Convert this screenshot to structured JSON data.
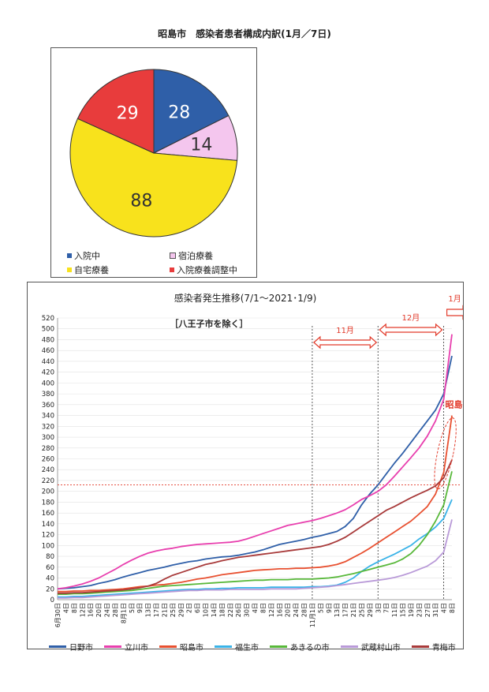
{
  "chart_data": [
    {
      "type": "pie",
      "title": "昭島市　感染者患者構成内訳(1月／7日)",
      "slices": [
        {
          "name": "入院中",
          "value": 28,
          "color": "#2f5fa8"
        },
        {
          "name": "宿泊療養",
          "value": 14,
          "color": "#f4c6ee"
        },
        {
          "name": "自宅療養",
          "value": 88,
          "color": "#f8e21c"
        },
        {
          "name": "入院療養調整中",
          "value": 29,
          "color": "#e83c3c"
        }
      ]
    },
    {
      "type": "line",
      "title": "感染者発生推移(7/1～2021･1/9)",
      "subtitle": "［八王子市を除く］",
      "ylim": [
        0,
        520
      ],
      "ystep": 20,
      "reference_line": 212,
      "month_labels": [
        "11月",
        "12月",
        "1月"
      ],
      "x_ticks": [
        "6月30日",
        "4日",
        "8日",
        "12日",
        "16日",
        "20日",
        "24日",
        "28日",
        "8月1日",
        "5日",
        "9日",
        "13日",
        "17日",
        "21日",
        "25日",
        "29日",
        "2日",
        "6日",
        "10日",
        "14日",
        "18日",
        "22日",
        "26日",
        "30日",
        "4日",
        "8日",
        "12日",
        "16日",
        "20日",
        "24日",
        "28日",
        "11月1日",
        "5日",
        "9日",
        "13日",
        "17日",
        "21日",
        "25日",
        "29日",
        "3日",
        "7日",
        "11日",
        "15日",
        "19日",
        "23日",
        "27日",
        "31日",
        "4日",
        "8日"
      ],
      "series": [
        {
          "name": "日野市",
          "color": "#2f5fa8",
          "values": [
            20,
            21,
            22,
            24,
            26,
            30,
            33,
            37,
            42,
            46,
            50,
            54,
            57,
            60,
            64,
            67,
            70,
            72,
            75,
            77,
            79,
            80,
            82,
            85,
            88,
            92,
            97,
            102,
            105,
            108,
            111,
            115,
            118,
            122,
            126,
            135,
            150,
            175,
            195,
            212,
            232,
            252,
            270,
            290,
            310,
            330,
            350,
            380,
            450
          ]
        },
        {
          "name": "立川市",
          "color": "#e83fae",
          "values": [
            20,
            22,
            25,
            29,
            34,
            40,
            48,
            56,
            65,
            73,
            80,
            86,
            90,
            93,
            95,
            98,
            100,
            102,
            103,
            104,
            105,
            106,
            108,
            112,
            117,
            122,
            127,
            132,
            137,
            140,
            143,
            146,
            150,
            155,
            160,
            166,
            175,
            185,
            192,
            200,
            212,
            228,
            245,
            262,
            280,
            302,
            330,
            370,
            490
          ]
        },
        {
          "name": "昭島市",
          "color": "#e85030",
          "values": [
            15,
            15,
            16,
            16,
            17,
            17,
            18,
            19,
            20,
            22,
            24,
            25,
            27,
            28,
            30,
            32,
            35,
            38,
            40,
            43,
            46,
            48,
            50,
            52,
            54,
            55,
            56,
            57,
            57,
            58,
            58,
            59,
            60,
            62,
            65,
            70,
            78,
            86,
            95,
            105,
            115,
            125,
            135,
            145,
            158,
            172,
            195,
            235,
            340
          ]
        },
        {
          "name": "福生市",
          "color": "#3ab3e8",
          "values": [
            5,
            5,
            6,
            6,
            7,
            8,
            9,
            10,
            11,
            12,
            13,
            14,
            15,
            16,
            17,
            18,
            19,
            19,
            20,
            20,
            21,
            21,
            22,
            22,
            22,
            22,
            23,
            23,
            23,
            23,
            23,
            24,
            24,
            25,
            27,
            32,
            40,
            52,
            62,
            70,
            77,
            84,
            92,
            100,
            112,
            122,
            134,
            150,
            185
          ]
        },
        {
          "name": "あきるの市",
          "color": "#58b83a",
          "values": [
            10,
            10,
            11,
            11,
            12,
            13,
            14,
            15,
            16,
            17,
            19,
            21,
            23,
            25,
            26,
            27,
            28,
            29,
            30,
            31,
            32,
            33,
            34,
            35,
            36,
            36,
            37,
            37,
            37,
            38,
            38,
            38,
            39,
            40,
            42,
            45,
            48,
            52,
            56,
            60,
            64,
            68,
            75,
            85,
            100,
            120,
            145,
            175,
            237
          ]
        },
        {
          "name": "武蔵村山市",
          "color": "#b99ad8",
          "values": [
            3,
            3,
            4,
            4,
            5,
            6,
            7,
            8,
            9,
            10,
            11,
            12,
            13,
            14,
            15,
            16,
            17,
            17,
            18,
            18,
            18,
            19,
            19,
            19,
            19,
            19,
            20,
            20,
            20,
            20,
            21,
            22,
            23,
            24,
            26,
            28,
            30,
            32,
            34,
            36,
            38,
            41,
            45,
            50,
            56,
            62,
            72,
            88,
            148
          ]
        },
        {
          "name": "青梅市",
          "color": "#a83a3a",
          "values": [
            12,
            12,
            13,
            13,
            14,
            15,
            16,
            17,
            18,
            20,
            22,
            25,
            30,
            38,
            45,
            50,
            55,
            60,
            65,
            68,
            72,
            75,
            78,
            80,
            82,
            84,
            86,
            88,
            90,
            92,
            94,
            96,
            98,
            102,
            108,
            115,
            125,
            135,
            145,
            155,
            165,
            172,
            180,
            188,
            195,
            202,
            210,
            225,
            258
          ]
        }
      ]
    }
  ],
  "annotation": {
    "label": "昭島市"
  }
}
